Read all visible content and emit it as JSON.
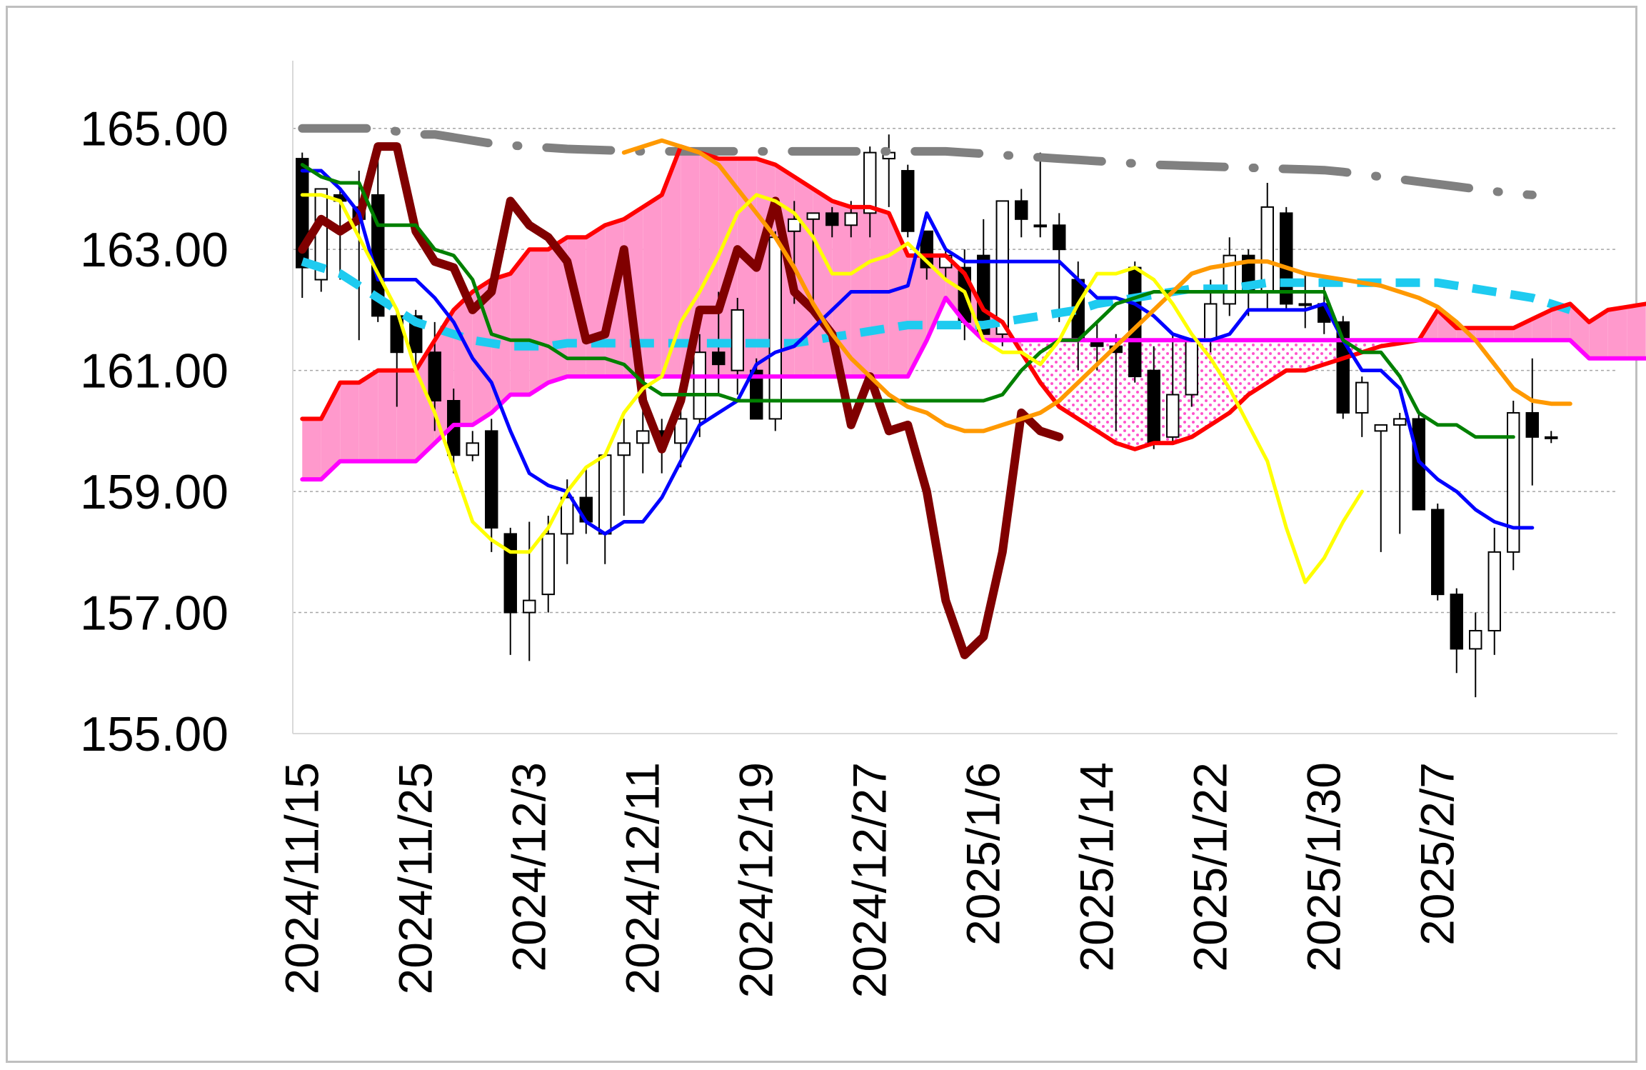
{
  "chart_data": {
    "type": "candlestick",
    "title": "",
    "xlabel": "",
    "ylabel": "",
    "ylim": [
      155,
      166
    ],
    "yticks": [
      "165.00",
      "163.00",
      "161.00",
      "159.00",
      "157.00",
      "155.00"
    ],
    "ytick_values": [
      165,
      163,
      161,
      159,
      157,
      155
    ],
    "grid": "horizontal dotted",
    "x_tick_labels": [
      "2024/11/15",
      "2024/11/25",
      "2024/12/3",
      "2024/12/11",
      "2024/12/19",
      "2024/12/27",
      "2025/1/6",
      "2025/1/14",
      "2025/1/22",
      "2025/1/30",
      "2025/2/7"
    ],
    "x_tick_indices": [
      0,
      6,
      12,
      18,
      24,
      30,
      36,
      42,
      48,
      54,
      60
    ],
    "n_slots": 70,
    "candles": [
      [
        164.5,
        164.6,
        162.2,
        162.7
      ],
      [
        162.5,
        164.0,
        162.3,
        164.0
      ],
      [
        163.9,
        164.0,
        162.5,
        163.8
      ],
      [
        163.7,
        164.3,
        161.5,
        163.5
      ],
      [
        163.9,
        164.6,
        161.8,
        161.9
      ],
      [
        161.9,
        162.0,
        160.4,
        161.3
      ],
      [
        161.9,
        162.0,
        161.0,
        161.3
      ],
      [
        161.3,
        161.8,
        160.0,
        160.5
      ],
      [
        160.5,
        160.7,
        159.3,
        159.6
      ],
      [
        159.6,
        160.0,
        159.5,
        159.8
      ],
      [
        160.0,
        160.2,
        158.0,
        158.4
      ],
      [
        158.3,
        158.4,
        156.3,
        157.0
      ],
      [
        157.0,
        158.5,
        156.2,
        157.2
      ],
      [
        157.3,
        158.6,
        157.0,
        158.3
      ],
      [
        158.3,
        159.2,
        157.8,
        158.9
      ],
      [
        158.9,
        159.4,
        158.3,
        158.5
      ],
      [
        158.3,
        159.6,
        157.8,
        159.6
      ],
      [
        159.6,
        160.2,
        158.6,
        159.8
      ],
      [
        159.8,
        160.4,
        159.3,
        160.0
      ],
      [
        160.0,
        160.2,
        159.3,
        159.8
      ],
      [
        159.8,
        160.6,
        159.4,
        160.2
      ],
      [
        160.2,
        161.6,
        159.9,
        161.3
      ],
      [
        161.3,
        162.3,
        160.6,
        161.1
      ],
      [
        161.0,
        162.2,
        160.6,
        162.0
      ],
      [
        161.0,
        161.2,
        160.2,
        160.2
      ],
      [
        160.2,
        163.3,
        160.0,
        163.2
      ],
      [
        163.3,
        163.8,
        162.1,
        163.5
      ],
      [
        163.5,
        163.6,
        162.0,
        163.6
      ],
      [
        163.6,
        163.7,
        163.2,
        163.4
      ],
      [
        163.4,
        163.8,
        163.2,
        163.6
      ],
      [
        163.6,
        164.7,
        163.2,
        164.6
      ],
      [
        164.5,
        164.9,
        163.7,
        164.6
      ],
      [
        164.3,
        164.4,
        163.2,
        163.3
      ],
      [
        163.3,
        163.3,
        162.5,
        162.7
      ],
      [
        162.7,
        163.0,
        162.5,
        162.9
      ],
      [
        162.7,
        163.0,
        161.5,
        161.8
      ],
      [
        162.9,
        163.5,
        161.6,
        161.6
      ],
      [
        161.6,
        163.8,
        161.4,
        163.8
      ],
      [
        163.8,
        164.0,
        163.2,
        163.5
      ],
      [
        163.4,
        164.6,
        163.2,
        163.4
      ],
      [
        163.4,
        163.6,
        161.8,
        163.0
      ],
      [
        162.5,
        162.8,
        161.0,
        161.5
      ],
      [
        161.5,
        161.8,
        161.0,
        161.4
      ],
      [
        161.4,
        161.6,
        160.0,
        161.3
      ],
      [
        162.7,
        162.8,
        160.8,
        160.9
      ],
      [
        161.0,
        161.4,
        159.7,
        159.8
      ],
      [
        159.9,
        161.6,
        159.8,
        160.6
      ],
      [
        160.6,
        161.4,
        160.4,
        161.5
      ],
      [
        161.5,
        162.5,
        161.3,
        162.1
      ],
      [
        162.1,
        163.2,
        161.9,
        162.9
      ],
      [
        162.9,
        163.0,
        161.9,
        162.3
      ],
      [
        162.3,
        164.1,
        162.0,
        163.7
      ],
      [
        163.6,
        163.7,
        162.0,
        162.1
      ],
      [
        162.1,
        162.6,
        161.7,
        162.1
      ],
      [
        162.1,
        162.4,
        161.6,
        161.8
      ],
      [
        161.8,
        161.9,
        160.2,
        160.3
      ],
      [
        160.3,
        160.9,
        159.9,
        160.8
      ],
      [
        160.0,
        160.1,
        158.0,
        160.1
      ],
      [
        160.1,
        160.3,
        158.3,
        160.2
      ],
      [
        160.2,
        160.3,
        158.7,
        158.7
      ],
      [
        158.7,
        158.8,
        157.2,
        157.3
      ],
      [
        157.3,
        157.4,
        156.0,
        156.4
      ],
      [
        156.4,
        157.0,
        155.6,
        156.7
      ],
      [
        156.7,
        158.4,
        156.3,
        158.0
      ],
      [
        158.0,
        160.5,
        157.7,
        160.3
      ],
      [
        160.3,
        161.2,
        159.1,
        159.9
      ],
      [
        159.9,
        160.0,
        159.8,
        159.9
      ]
    ],
    "series": [
      {
        "color": "#808080",
        "style": "dashdot",
        "width": 12,
        "values": [
          165.0,
          165.0,
          165.0,
          165.0,
          165.0,
          164.95,
          164.9,
          164.9,
          164.85,
          164.8,
          164.75,
          164.72,
          164.7,
          164.68,
          164.66,
          164.65,
          164.64,
          164.63,
          164.62,
          164.62,
          164.62,
          164.62,
          164.62,
          164.62,
          164.62,
          164.62,
          164.62,
          164.62,
          164.62,
          164.62,
          164.62,
          164.62,
          164.62,
          164.62,
          164.62,
          164.6,
          164.58,
          164.56,
          164.54,
          164.52,
          164.5,
          164.48,
          164.46,
          164.44,
          164.42,
          164.4,
          164.39,
          164.38,
          164.37,
          164.36,
          164.35,
          164.34,
          164.33,
          164.32,
          164.31,
          164.28,
          164.24,
          164.2,
          164.16,
          164.12,
          164.08,
          164.04,
          164.0,
          163.96,
          163.92,
          163.9
        ]
      },
      {
        "color": "#1ecbf0",
        "style": "dashed",
        "width": 12,
        "values": [
          162.8,
          162.7,
          162.6,
          162.4,
          162.2,
          162.0,
          161.8,
          161.7,
          161.6,
          161.5,
          161.45,
          161.4,
          161.4,
          161.4,
          161.45,
          161.45,
          161.45,
          161.45,
          161.45,
          161.45,
          161.45,
          161.45,
          161.45,
          161.45,
          161.45,
          161.45,
          161.45,
          161.5,
          161.55,
          161.6,
          161.65,
          161.7,
          161.75,
          161.75,
          161.75,
          161.75,
          161.75,
          161.8,
          161.85,
          161.9,
          161.95,
          162.0,
          162.1,
          162.15,
          162.2,
          162.25,
          162.3,
          162.35,
          162.35,
          162.35,
          162.4,
          162.45,
          162.45,
          162.45,
          162.45,
          162.45,
          162.45,
          162.45,
          162.45,
          162.45,
          162.45,
          162.4,
          162.35,
          162.3,
          162.25,
          162.2,
          162.1,
          162.0
        ]
      },
      {
        "color": "#ff0000",
        "style": "solid",
        "width": 6,
        "values": [
          160.2,
          160.2,
          160.8,
          160.8,
          161.0,
          161.0,
          161.0,
          161.5,
          162.0,
          162.3,
          162.5,
          162.6,
          163.0,
          163.0,
          163.2,
          163.2,
          163.4,
          163.5,
          163.7,
          163.9,
          164.7,
          164.6,
          164.5,
          164.5,
          164.5,
          164.4,
          164.2,
          164.0,
          163.8,
          163.7,
          163.7,
          163.6,
          162.9,
          162.9,
          162.9,
          162.6,
          162.0,
          161.8,
          161.3,
          160.8,
          160.4,
          160.2,
          160.0,
          159.8,
          159.7,
          159.8,
          159.8,
          159.9,
          160.1,
          160.3,
          160.6,
          160.8,
          161.0,
          161.0,
          161.1,
          161.2,
          161.3,
          161.4,
          161.45,
          161.5,
          162.0,
          161.7,
          161.7,
          161.7,
          161.7,
          161.85,
          162.0,
          162.1,
          161.8,
          162.0,
          162.05,
          162.1
        ]
      },
      {
        "color": "#ff00ff",
        "style": "solid",
        "width": 6,
        "values": [
          159.2,
          159.2,
          159.5,
          159.5,
          159.5,
          159.5,
          159.5,
          159.8,
          160.1,
          160.1,
          160.3,
          160.6,
          160.6,
          160.8,
          160.9,
          160.9,
          160.9,
          160.9,
          160.9,
          160.9,
          160.9,
          160.9,
          160.9,
          160.9,
          160.9,
          160.9,
          160.9,
          160.9,
          160.9,
          160.9,
          160.9,
          160.9,
          160.9,
          161.5,
          162.2,
          161.8,
          161.5,
          161.5,
          161.5,
          161.5,
          161.5,
          161.5,
          161.5,
          161.5,
          161.5,
          161.5,
          161.5,
          161.5,
          161.5,
          161.5,
          161.5,
          161.5,
          161.5,
          161.5,
          161.5,
          161.5,
          161.5,
          161.5,
          161.5,
          161.5,
          161.5,
          161.5,
          161.5,
          161.5,
          161.5,
          161.5,
          161.5,
          161.5,
          161.2,
          161.2,
          161.2,
          161.2
        ]
      },
      {
        "color": "#800000",
        "style": "solid",
        "width": 12,
        "values": [
          163.0,
          163.5,
          163.3,
          163.5,
          164.7,
          164.7,
          163.3,
          162.8,
          162.7,
          162.0,
          162.3,
          163.8,
          163.4,
          163.2,
          162.8,
          161.5,
          161.6,
          163.0,
          160.5,
          159.7,
          160.5,
          162.0,
          162.0,
          163.0,
          162.7,
          163.8,
          162.3,
          162.0,
          161.6,
          160.1,
          160.9,
          160.0,
          160.1,
          159.0,
          157.2,
          156.3,
          156.6,
          158.0,
          160.3,
          160.0,
          159.9
        ]
      },
      {
        "color": "#0000ff",
        "style": "solid",
        "width": 5,
        "values": [
          164.3,
          164.3,
          164.0,
          163.6,
          162.5,
          162.5,
          162.5,
          162.2,
          161.8,
          161.2,
          160.8,
          160.0,
          159.3,
          159.1,
          159.0,
          158.5,
          158.3,
          158.5,
          158.5,
          158.9,
          159.5,
          160.1,
          160.3,
          160.5,
          161.1,
          161.3,
          161.4,
          161.7,
          162.0,
          162.3,
          162.3,
          162.3,
          162.4,
          163.6,
          163.0,
          162.8,
          162.8,
          162.8,
          162.8,
          162.8,
          162.8,
          162.5,
          162.2,
          162.2,
          162.1,
          161.9,
          161.6,
          161.5,
          161.5,
          161.6,
          162.0,
          162.0,
          162.0,
          162.0,
          162.1,
          161.5,
          161.0,
          161.0,
          160.7,
          159.5,
          159.2,
          159.0,
          158.7,
          158.5,
          158.4,
          158.4
        ]
      },
      {
        "color": "#008000",
        "style": "solid",
        "width": 5,
        "values": [
          164.4,
          164.2,
          164.1,
          164.1,
          163.4,
          163.4,
          163.4,
          163.0,
          162.9,
          162.5,
          161.6,
          161.5,
          161.5,
          161.4,
          161.2,
          161.2,
          161.2,
          161.1,
          160.8,
          160.6,
          160.6,
          160.6,
          160.6,
          160.5,
          160.5,
          160.5,
          160.5,
          160.5,
          160.5,
          160.5,
          160.5,
          160.5,
          160.5,
          160.5,
          160.5,
          160.5,
          160.5,
          160.6,
          161.0,
          161.3,
          161.5,
          161.5,
          161.8,
          162.1,
          162.2,
          162.3,
          162.3,
          162.3,
          162.3,
          162.3,
          162.3,
          162.3,
          162.3,
          162.3,
          162.3,
          161.5,
          161.3,
          161.3,
          160.9,
          160.3,
          160.1,
          160.1,
          159.9,
          159.9,
          159.9
        ]
      },
      {
        "color": "#ff9900",
        "style": "solid",
        "width": 6,
        "values": [
          164.6,
          164.7,
          164.8,
          164.7,
          164.6,
          164.4,
          164.0,
          163.6,
          163.2,
          162.7,
          162.1,
          161.6,
          161.2,
          160.9,
          160.6,
          160.4,
          160.3,
          160.1,
          160.0,
          160.0,
          160.1,
          160.2,
          160.3,
          160.5,
          160.8,
          161.1,
          161.4,
          161.7,
          162.0,
          162.3,
          162.6,
          162.7,
          162.75,
          162.8,
          162.8,
          162.7,
          162.6,
          162.55,
          162.5,
          162.45,
          162.4,
          162.3,
          162.2,
          162.05,
          161.8,
          161.5,
          161.1,
          160.7,
          160.5,
          160.45,
          160.45
        ]
      },
      {
        "color": "#ffff00",
        "style": "solid",
        "width": 5,
        "values": [
          163.9,
          163.9,
          163.8,
          163.2,
          162.6,
          162.0,
          161.0,
          160.3,
          159.4,
          158.5,
          158.2,
          158.0,
          158.0,
          158.4,
          159.0,
          159.4,
          159.6,
          160.3,
          160.7,
          160.9,
          161.8,
          162.3,
          162.9,
          163.6,
          163.9,
          163.8,
          163.6,
          163.2,
          162.6,
          162.6,
          162.8,
          162.9,
          163.1,
          162.8,
          162.5,
          162.3,
          161.5,
          161.3,
          161.3,
          161.1,
          161.5,
          162.1,
          162.6,
          162.6,
          162.7,
          162.5,
          162.1,
          161.6,
          161.2,
          160.7,
          160.1,
          159.5,
          158.4,
          157.5,
          157.9,
          158.5,
          159.0
        ]
      }
    ],
    "series_start_index": [
      0,
      0,
      0,
      0,
      0,
      0,
      0,
      17,
      0
    ],
    "kumo": {
      "fill_above": "#ff99cc",
      "fill_below": "dotted #ff66cc",
      "between_series": [
        2,
        3
      ]
    }
  }
}
